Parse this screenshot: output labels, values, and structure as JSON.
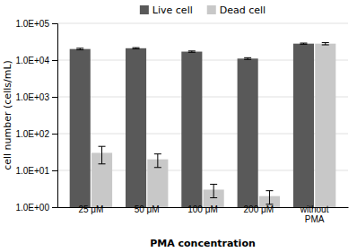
{
  "chart_data": {
    "type": "bar",
    "categories": [
      "25 μM",
      "50 μM",
      "100 μM",
      "200 μM",
      "without\nPMA"
    ],
    "series": [
      {
        "name": "Live cell",
        "color": "#595959",
        "values": [
          20000,
          21000,
          17000,
          11000,
          28000
        ],
        "errors_lo": [
          1000,
          800,
          700,
          600,
          1000
        ],
        "errors_hi": [
          1000,
          800,
          700,
          600,
          1000
        ]
      },
      {
        "name": "Dead cell",
        "color": "#c8c8c8",
        "values": [
          30,
          20,
          3,
          2,
          28000
        ],
        "errors_lo": [
          15,
          8,
          1.2,
          0.8,
          2000
        ],
        "errors_hi": [
          15,
          8,
          1.2,
          0.8,
          2000
        ]
      }
    ],
    "xlabel": "PMA concentration",
    "ylabel": "cell number (cells/mL)",
    "ylim": [
      1,
      100000
    ],
    "yticks": [
      {
        "value": 1,
        "label": "1.0E+00"
      },
      {
        "value": 10,
        "label": "1.0E+01"
      },
      {
        "value": 100,
        "label": "1.0E+02"
      },
      {
        "value": 1000,
        "label": "1.0E+03"
      },
      {
        "value": 10000,
        "label": "1.0E+04"
      },
      {
        "value": 100000,
        "label": "1.0E+05"
      }
    ],
    "log": "y",
    "grid": true,
    "legend": "top"
  }
}
